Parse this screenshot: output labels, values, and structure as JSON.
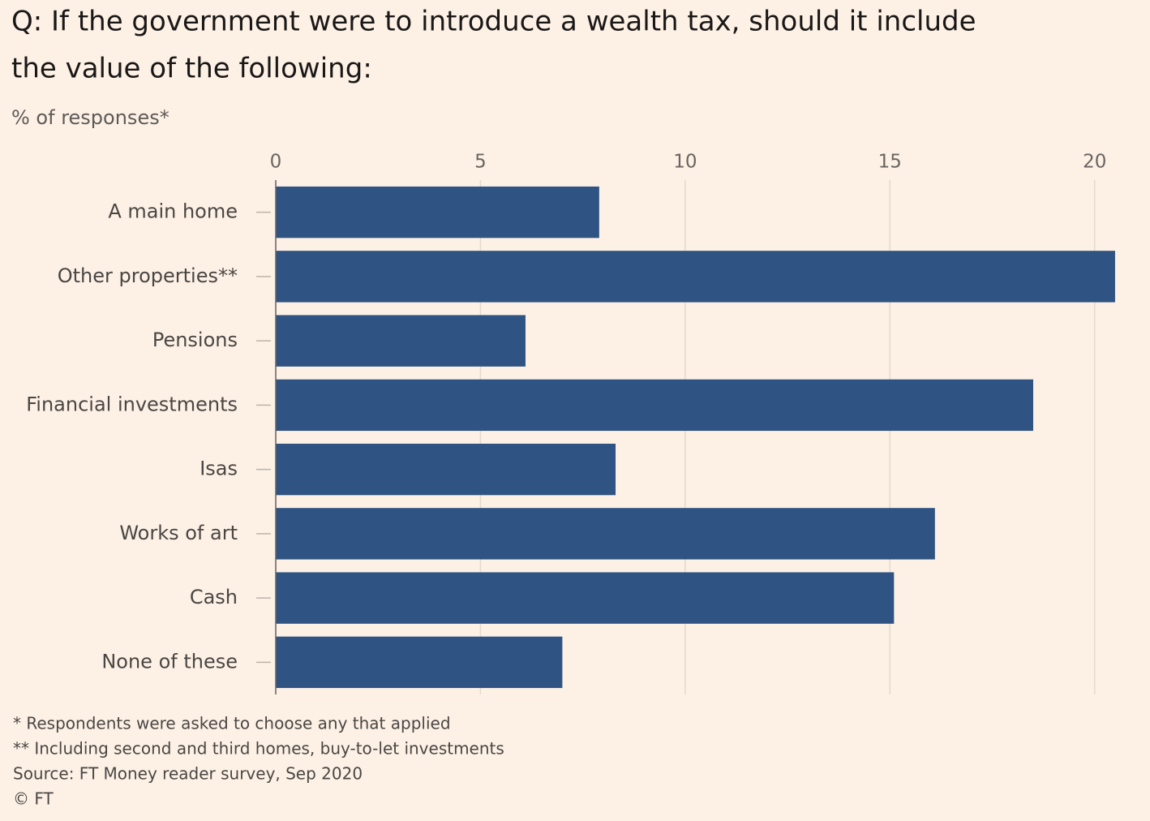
{
  "chart_data": {
    "type": "hbar",
    "title": [
      "Q: If the government were to introduce a wealth tax, should it include",
      "the value of the following:"
    ],
    "subtitle": "% of responses*",
    "categories": [
      "A main home",
      "Other properties**",
      "Pensions",
      "Financial investments",
      "Isas",
      "Works of art",
      "Cash",
      "None of these"
    ],
    "values": [
      7.9,
      20.5,
      6.1,
      18.5,
      8.3,
      16.1,
      15.1,
      7.0
    ],
    "color": "#2f5382",
    "xlim": [
      0,
      20.6
    ],
    "xticks": [
      0,
      5,
      10,
      15,
      20
    ],
    "grid": true,
    "notes": [
      "* Respondents were asked to choose any that applied",
      "** Including second and third homes, buy-to-let investments",
      "Source: FT Money reader survey, Sep 2020",
      "© FT"
    ]
  }
}
